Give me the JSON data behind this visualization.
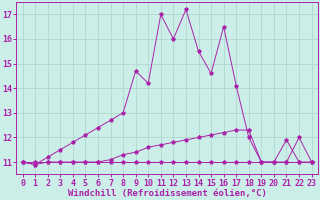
{
  "title": "",
  "xlabel": "Windchill (Refroidissement éolien,°C)",
  "ylabel": "",
  "bg_color": "#cceee8",
  "grid_color": "#b0d8cc",
  "line_color": "#aa22aa",
  "x_ticks": [
    0,
    1,
    2,
    3,
    4,
    5,
    6,
    7,
    8,
    9,
    10,
    11,
    12,
    13,
    14,
    15,
    16,
    17,
    18,
    19,
    20,
    21,
    22,
    23
  ],
  "ylim": [
    10.5,
    17.5
  ],
  "xlim": [
    -0.5,
    23.5
  ],
  "series": [
    {
      "x": [
        0,
        1,
        2,
        3,
        4,
        5,
        6,
        7,
        8,
        9,
        10,
        11,
        12,
        13,
        14,
        15,
        16,
        17,
        18,
        19,
        20,
        21,
        22,
        23
      ],
      "y": [
        11,
        11,
        11,
        11,
        11,
        11,
        11,
        11,
        11,
        11,
        11,
        11,
        11,
        11,
        11,
        11,
        11,
        11,
        11,
        11,
        11,
        11,
        11,
        11
      ]
    },
    {
      "x": [
        0,
        1,
        2,
        3,
        4,
        5,
        6,
        7,
        8,
        9,
        10,
        11,
        12,
        13,
        14,
        15,
        16,
        17,
        18,
        19,
        20,
        21,
        22,
        23
      ],
      "y": [
        11,
        10.9,
        11.0,
        11.0,
        11.0,
        11.0,
        11.0,
        11.1,
        11.3,
        11.4,
        11.6,
        11.7,
        11.8,
        11.9,
        12.0,
        12.1,
        12.2,
        12.3,
        12.3,
        11.0,
        11.0,
        11.0,
        12.0,
        11.0
      ]
    },
    {
      "x": [
        0,
        1,
        2,
        3,
        4,
        5,
        6,
        7,
        8,
        9,
        10,
        11,
        12,
        13,
        14,
        15,
        16,
        17,
        18,
        19,
        20,
        21,
        22,
        23
      ],
      "y": [
        11,
        10.9,
        11.2,
        11.5,
        11.8,
        12.1,
        12.4,
        12.7,
        13.0,
        14.7,
        14.2,
        17.0,
        16.0,
        17.2,
        15.5,
        14.6,
        16.5,
        14.1,
        12.0,
        11.0,
        11.0,
        11.9,
        11.0,
        11.0
      ]
    }
  ],
  "xlabel_fontsize": 6.5,
  "tick_fontsize": 6.0,
  "yticks": [
    11,
    12,
    13,
    14,
    15,
    16,
    17
  ]
}
